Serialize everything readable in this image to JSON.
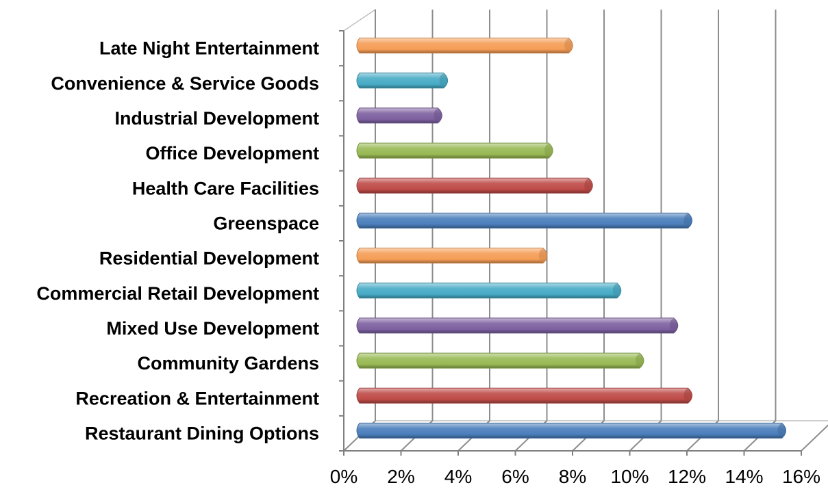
{
  "chart_data": {
    "type": "bar",
    "orientation": "horizontal",
    "style": "3d-cylinder",
    "title": "",
    "xlabel": "",
    "ylabel": "",
    "categories": [
      "Restaurant Dining  Options",
      "Recreation & Entertainment",
      "Community Gardens",
      "Mixed Use Development",
      "Commercial Retail Development",
      "Residential Development",
      "Greenspace",
      "Health Care Facilities",
      "Office Development",
      "Industrial Development",
      "Convenience & Service Goods",
      "Late Night Entertainment"
    ],
    "values": [
      15.0,
      11.7,
      10.0,
      11.2,
      9.2,
      6.6,
      11.7,
      8.2,
      6.8,
      2.9,
      3.1,
      7.5
    ],
    "xlim": [
      0,
      16
    ],
    "x_tick_labels": [
      "0%",
      "2%",
      "4%",
      "6%",
      "8%",
      "10%",
      "12%",
      "14%",
      "16%"
    ],
    "grid": true,
    "legend": "none",
    "bar_colors": [
      "#4a7ebb",
      "#be4b48",
      "#98b954",
      "#7d60a0",
      "#46aac5",
      "#f59d56",
      "#4a7ebb",
      "#be4b48",
      "#98b954",
      "#7d60a0",
      "#46aac5",
      "#f59d56"
    ]
  }
}
